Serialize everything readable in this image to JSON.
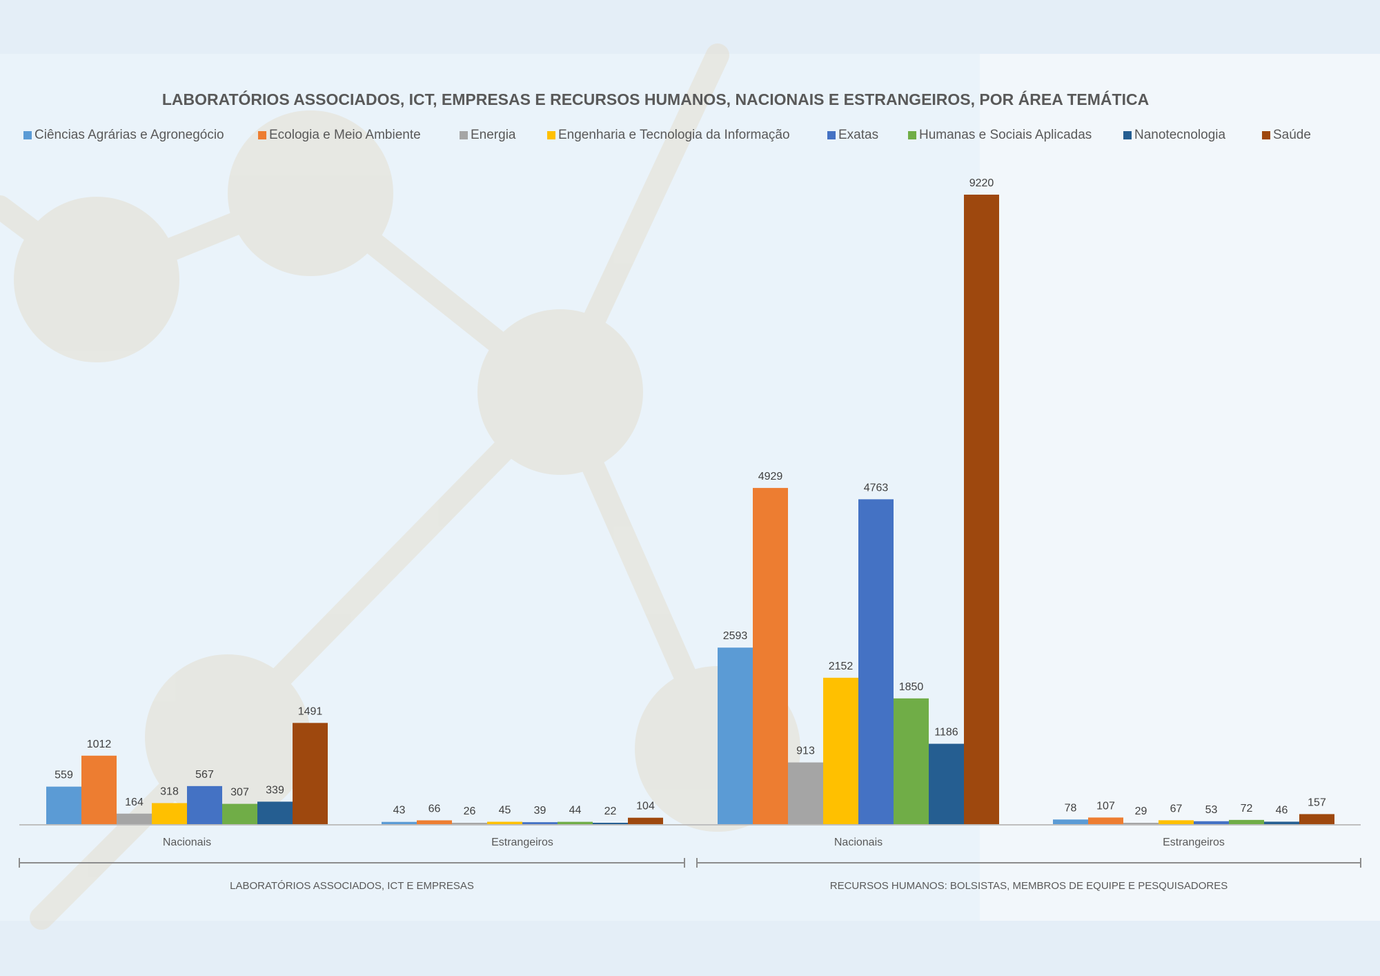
{
  "chart_data": {
    "type": "bar",
    "title": "LABORATÓRIOS ASSOCIADOS, ICT, EMPRESAS E RECURSOS HUMANOS, NACIONAIS E ESTRANGEIROS, POR ÁREA TEMÁTICA",
    "legend_position": "top",
    "grid": false,
    "ylim": [
      0,
      9220
    ],
    "series": [
      {
        "name": "Ciências Agrárias e Agronegócio",
        "color": "#5b9bd5",
        "values": [
          559,
          43,
          2593,
          78
        ]
      },
      {
        "name": "Ecologia e Meio Ambiente",
        "color": "#ed7d31",
        "values": [
          1012,
          66,
          4929,
          107
        ]
      },
      {
        "name": "Energia",
        "color": "#a5a5a5",
        "values": [
          164,
          26,
          913,
          29
        ]
      },
      {
        "name": "Engenharia e Tecnologia da Informação",
        "color": "#ffc000",
        "values": [
          318,
          45,
          2152,
          67
        ]
      },
      {
        "name": "Exatas",
        "color": "#4472c4",
        "values": [
          567,
          39,
          4763,
          53
        ]
      },
      {
        "name": "Humanas e Sociais Aplicadas",
        "color": "#70ad47",
        "values": [
          307,
          44,
          1850,
          72
        ]
      },
      {
        "name": "Nanotecnologia",
        "color": "#255e91",
        "values": [
          339,
          22,
          1186,
          46
        ]
      },
      {
        "name": "Saúde",
        "color": "#9e480e",
        "values": [
          1491,
          104,
          9220,
          157
        ]
      }
    ],
    "categories": [
      "Nacionais",
      "Estrangeiros",
      "Nacionais",
      "Estrangeiros"
    ],
    "groups": [
      {
        "label": "LABORATÓRIOS ASSOCIADOS, ICT E EMPRESAS",
        "categories": [
          0,
          1
        ]
      },
      {
        "label": "RECURSOS HUMANOS: BOLSISTAS, MEMBROS DE EQUIPE E PESQUISADORES",
        "categories": [
          2,
          3
        ]
      }
    ]
  }
}
